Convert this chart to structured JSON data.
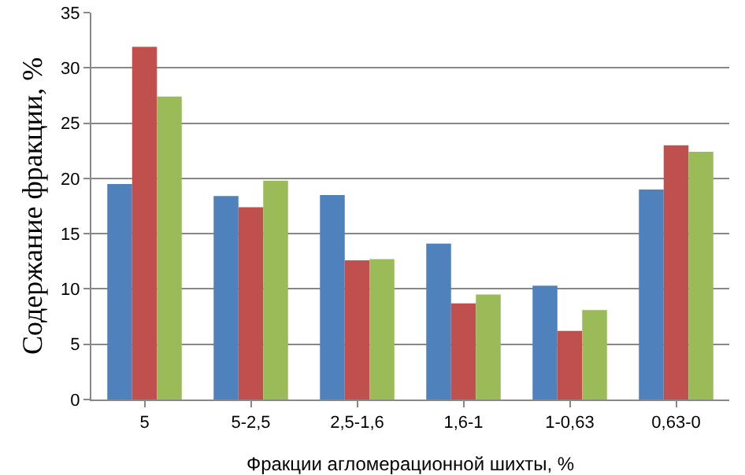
{
  "chart_data": {
    "type": "bar",
    "xlabel": "Фракции агломерационной шихты, %",
    "ylabel": "Содержание фракции, %",
    "categories": [
      "5",
      "5-2,5",
      "2,5-1,6",
      "1,6-1",
      "1-0,63",
      "0,63-0"
    ],
    "series": [
      {
        "color": "#4f81bd",
        "values": [
          19.5,
          18.4,
          18.5,
          14.1,
          10.3,
          19.0
        ]
      },
      {
        "color": "#c0504d",
        "values": [
          31.9,
          17.4,
          12.6,
          8.7,
          6.2,
          23.0
        ]
      },
      {
        "color": "#9bbb59",
        "values": [
          27.4,
          19.8,
          12.7,
          9.5,
          8.1,
          22.4
        ]
      }
    ],
    "ylim": [
      0,
      35
    ],
    "yticks": [
      0,
      5,
      10,
      15,
      20,
      25,
      30,
      35
    ],
    "grid": "y"
  }
}
